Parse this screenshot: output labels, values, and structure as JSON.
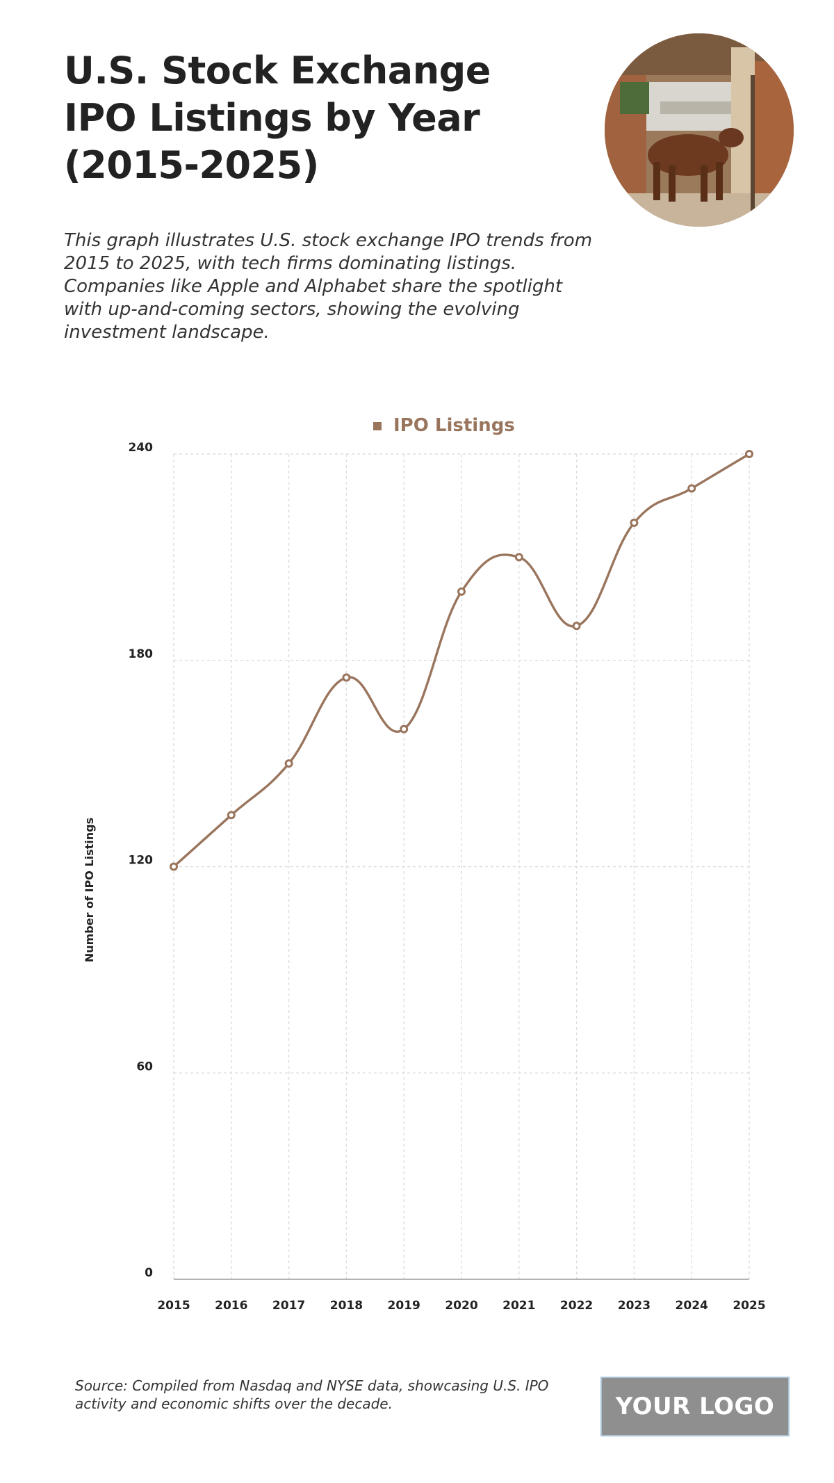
{
  "header": {
    "title": "U.S. Stock Exchange IPO Listings by Year (2015-2025)",
    "subtitle": "This graph illustrates U.S. stock exchange IPO trends from 2015 to 2025, with tech firms dominating listings. Companies like Apple and Alphabet share the spotlight with up-and-coming sectors, showing the evolving investment landscape."
  },
  "footer": {
    "source": "Source: Compiled from Nasdaq and NYSE data, showcasing U.S. IPO activity and economic shifts over the decade.",
    "logo_text": "YOUR LOGO"
  },
  "colors": {
    "line": "#9a755d",
    "grid": "#dddddd",
    "axis": "#9a9a9a",
    "marker_fill": "#ffffff"
  },
  "chart_data": {
    "type": "line",
    "title": "",
    "xlabel": "",
    "ylabel": "Number of IPO Listings",
    "categories": [
      "2015",
      "2016",
      "2017",
      "2018",
      "2019",
      "2020",
      "2021",
      "2022",
      "2023",
      "2024",
      "2025"
    ],
    "series": [
      {
        "name": "IPO Listings",
        "values": [
          120,
          135,
          150,
          175,
          160,
          200,
          210,
          190,
          220,
          230,
          240
        ]
      }
    ],
    "ylim": [
      0,
      240
    ],
    "yticks": [
      0,
      60,
      120,
      180,
      240
    ],
    "grid": true,
    "legend": "top-center",
    "smooth": true
  }
}
